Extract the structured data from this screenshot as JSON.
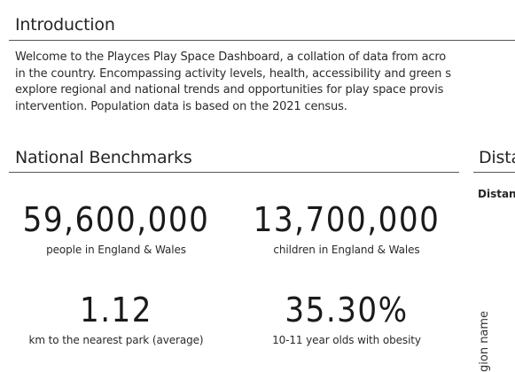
{
  "introduction": {
    "title": "Introduction",
    "lines": [
      "Welcome to the Playces Play Space Dashboard, a collation of data from acro",
      "in the country. Encompassing activity levels, health, accessibility and green s",
      "explore regional and national trends and opportunities for play space provis",
      "intervention. Population data is based on the 2021 census."
    ]
  },
  "national_benchmarks": {
    "title": "National Benchmarks",
    "stats": [
      {
        "value": "59,600,000",
        "label": "people in England & Wales"
      },
      {
        "value": "13,700,000",
        "label": "children in England & Wales"
      },
      {
        "value": "1.12",
        "label": "km to the nearest park (average)"
      },
      {
        "value": "35.30%",
        "label": "10-11 year olds with obesity"
      }
    ]
  },
  "distance_panel": {
    "title": "Dista",
    "subtitle": "Distan",
    "axis_label": "gion name"
  }
}
